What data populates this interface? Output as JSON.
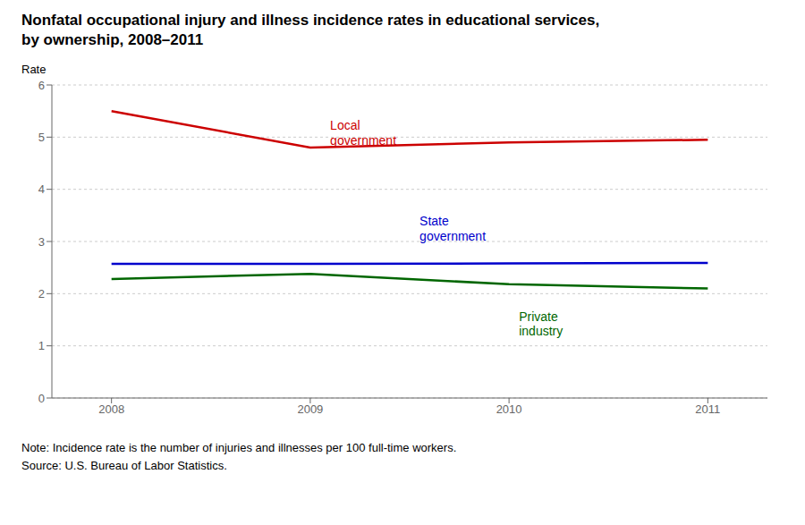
{
  "chart_data": {
    "type": "line",
    "title": "Nonfatal occupational injury and illness incidence rates in educational services,\nby ownership, 2008–2011",
    "y_label": "Rate",
    "note": "Note: Incidence rate is the number of injuries and illnesses per 100 full-time workers.",
    "source": "Source: U.S. Bureau of Labor Statistics.",
    "x": [
      2008,
      2009,
      2010,
      2011
    ],
    "series": [
      {
        "name": "Local\ngovernment",
        "color": "#cc0000",
        "values": [
          5.5,
          4.8,
          4.9,
          4.95
        ]
      },
      {
        "name": "State\ngovernment",
        "color": "#0000cc",
        "values": [
          2.57,
          2.57,
          2.58,
          2.59
        ]
      },
      {
        "name": "Private\nindustry",
        "color": "#006600",
        "values": [
          2.28,
          2.38,
          2.18,
          2.1
        ]
      }
    ],
    "annotations": [
      {
        "text": "Local\ngovernment",
        "x": 2009.1,
        "y": 5.38,
        "color": "#cc0000"
      },
      {
        "text": "State\ngovernment",
        "x": 2009.55,
        "y": 3.55,
        "color": "#0000cc"
      },
      {
        "text": "Private\nindustry",
        "x": 2010.05,
        "y": 1.72,
        "color": "#006600"
      }
    ],
    "xlim": [
      2007.7,
      2011.3
    ],
    "xticks": [
      2008,
      2009,
      2010,
      2011
    ],
    "ylim": [
      0,
      6
    ],
    "yticks": [
      0,
      1,
      2,
      3,
      4,
      5,
      6
    ],
    "grid": "y"
  }
}
